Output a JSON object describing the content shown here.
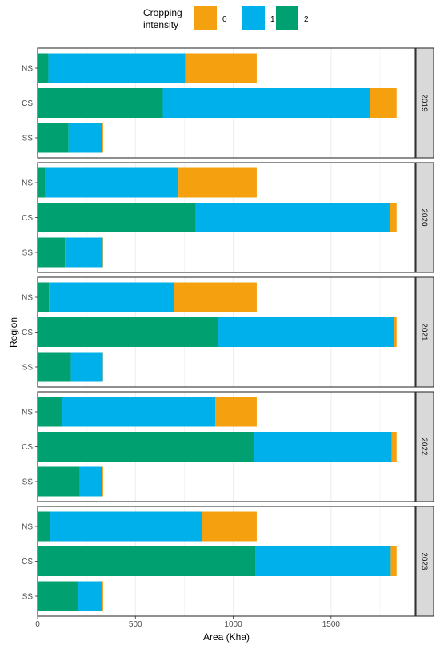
{
  "chart_data": {
    "type": "bar",
    "orientation": "horizontal",
    "stacked": true,
    "xlabel": "Area (Kha)",
    "ylabel": "Region",
    "xlim": [
      0,
      1930
    ],
    "xticks": [
      0,
      500,
      1000,
      1500
    ],
    "grid": true,
    "legend": {
      "title_lines": [
        "Cropping",
        "intensity"
      ],
      "position": "top",
      "entries": [
        {
          "label": "0",
          "color": "#F5A00F"
        },
        {
          "label": "1",
          "color": "#00B0EA"
        },
        {
          "label": "2",
          "color": "#00A070"
        }
      ]
    },
    "categories": [
      "NS",
      "CS",
      "SS"
    ],
    "panels": [
      {
        "facet": "2019",
        "bars": [
          {
            "region": "NS",
            "values": {
              "2": 55,
              "1": 700,
              "0": 365
            }
          },
          {
            "region": "CS",
            "values": {
              "2": 640,
              "1": 1060,
              "0": 135
            }
          },
          {
            "region": "SS",
            "values": {
              "2": 158,
              "1": 170,
              "0": 7
            }
          }
        ]
      },
      {
        "facet": "2020",
        "bars": [
          {
            "region": "NS",
            "values": {
              "2": 40,
              "1": 680,
              "0": 400
            }
          },
          {
            "region": "CS",
            "values": {
              "2": 808,
              "1": 992,
              "0": 35
            }
          },
          {
            "region": "SS",
            "values": {
              "2": 140,
              "1": 193,
              "0": 2
            }
          }
        ]
      },
      {
        "facet": "2021",
        "bars": [
          {
            "region": "NS",
            "values": {
              "2": 58,
              "1": 640,
              "0": 422
            }
          },
          {
            "region": "CS",
            "values": {
              "2": 922,
              "1": 898,
              "0": 15
            }
          },
          {
            "region": "SS",
            "values": {
              "2": 170,
              "1": 164,
              "0": 1
            }
          }
        ]
      },
      {
        "facet": "2022",
        "bars": [
          {
            "region": "NS",
            "values": {
              "2": 125,
              "1": 783,
              "0": 212
            }
          },
          {
            "region": "CS",
            "values": {
              "2": 1105,
              "1": 705,
              "0": 25
            }
          },
          {
            "region": "SS",
            "values": {
              "2": 215,
              "1": 113,
              "0": 7
            }
          }
        ]
      },
      {
        "facet": "2023",
        "bars": [
          {
            "region": "NS",
            "values": {
              "2": 62,
              "1": 777,
              "0": 281
            }
          },
          {
            "region": "CS",
            "values": {
              "2": 1115,
              "1": 690,
              "0": 30
            }
          },
          {
            "region": "SS",
            "values": {
              "2": 205,
              "1": 122,
              "0": 8
            }
          }
        ]
      }
    ]
  }
}
